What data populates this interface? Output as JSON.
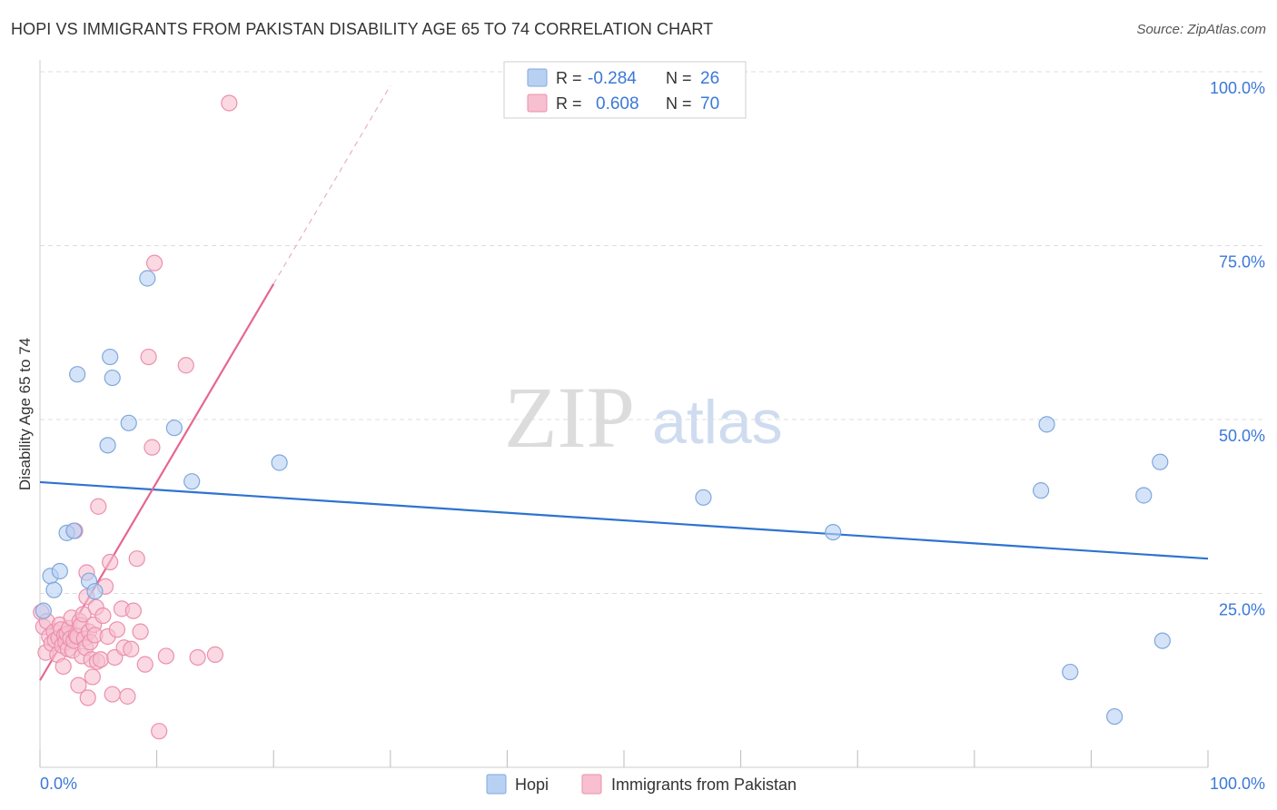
{
  "header": {
    "title": "HOPI VS IMMIGRANTS FROM PAKISTAN DISABILITY AGE 65 TO 74 CORRELATION CHART",
    "source": "Source: ZipAtlas.com"
  },
  "watermark": {
    "part1": "ZIP",
    "part2": "atlas"
  },
  "colors": {
    "hopi_fill": "#b8d1f3",
    "hopi_stroke": "#7fa8dc",
    "hopi_line": "#2e73d0",
    "pak_fill": "#f7bfd0",
    "pak_stroke": "#ec8fae",
    "pak_line": "#e5678f",
    "value_text": "#3b78d8"
  },
  "legend": {
    "rows": [
      {
        "r_label": "R =",
        "r_value": "-0.284",
        "n_label": "N =",
        "n_value": "26"
      },
      {
        "r_label": "R =",
        "r_value": "0.608",
        "n_label": "N =",
        "n_value": "70"
      }
    ]
  },
  "chart_data": {
    "type": "scatter",
    "title": "HOPI VS IMMIGRANTS FROM PAKISTAN DISABILITY AGE 65 TO 74 CORRELATION CHART",
    "xlabel": "",
    "ylabel": "Disability Age 65 to 74",
    "xlim": [
      0,
      100
    ],
    "ylim": [
      0,
      100
    ],
    "x_tick_labels": [
      "0.0%",
      "100.0%"
    ],
    "y_tick_labels": [
      "100.0%",
      "75.0%",
      "50.0%",
      "25.0%"
    ],
    "y_tick_values": [
      100,
      75,
      50,
      25
    ],
    "x_minor_ticks": [
      0,
      10,
      20,
      30,
      40,
      50,
      60,
      70,
      80,
      90,
      100
    ],
    "legend_labels": [
      "Hopi",
      "Immigrants from Pakistan"
    ],
    "series": [
      {
        "name": "Hopi",
        "r": -0.284,
        "n": 26,
        "trend": {
          "x0": 0,
          "y0": 41.0,
          "x1": 100,
          "y1": 30.0,
          "dashed_to": null
        },
        "points": [
          [
            0.3,
            22.5
          ],
          [
            0.9,
            27.5
          ],
          [
            1.2,
            25.5
          ],
          [
            1.7,
            28.2
          ],
          [
            2.3,
            33.7
          ],
          [
            2.9,
            34.0
          ],
          [
            3.2,
            56.5
          ],
          [
            4.2,
            26.8
          ],
          [
            4.7,
            25.3
          ],
          [
            5.8,
            46.3
          ],
          [
            6.0,
            59.0
          ],
          [
            6.2,
            56.0
          ],
          [
            7.6,
            49.5
          ],
          [
            9.2,
            70.3
          ],
          [
            11.5,
            48.8
          ],
          [
            13.0,
            41.1
          ],
          [
            20.5,
            43.8
          ],
          [
            56.8,
            38.8
          ],
          [
            67.9,
            33.8
          ],
          [
            85.7,
            39.8
          ],
          [
            86.2,
            49.3
          ],
          [
            88.2,
            13.7
          ],
          [
            92.0,
            7.3
          ],
          [
            94.5,
            39.1
          ],
          [
            95.9,
            43.9
          ],
          [
            96.1,
            18.2
          ]
        ]
      },
      {
        "name": "Immigrants from Pakistan",
        "r": 0.608,
        "n": 70,
        "trend": {
          "x0": 0,
          "y0": 12.5,
          "x1": 20,
          "y1": 69.5,
          "dashed_to": {
            "x": 30,
            "y": 98
          }
        },
        "points": [
          [
            0.1,
            22.3
          ],
          [
            0.3,
            20.2
          ],
          [
            0.5,
            16.5
          ],
          [
            0.6,
            21.0
          ],
          [
            0.8,
            18.8
          ],
          [
            1.0,
            17.8
          ],
          [
            1.2,
            19.5
          ],
          [
            1.3,
            18.3
          ],
          [
            1.5,
            16.2
          ],
          [
            1.6,
            18.6
          ],
          [
            1.7,
            20.5
          ],
          [
            1.8,
            19.8
          ],
          [
            1.9,
            17.5
          ],
          [
            2.0,
            14.5
          ],
          [
            2.1,
            19.0
          ],
          [
            2.2,
            18.0
          ],
          [
            2.3,
            19.2
          ],
          [
            2.4,
            17.0
          ],
          [
            2.5,
            20.0
          ],
          [
            2.6,
            18.5
          ],
          [
            2.7,
            21.5
          ],
          [
            2.8,
            16.8
          ],
          [
            2.9,
            18.2
          ],
          [
            3.0,
            34.0
          ],
          [
            3.1,
            19.0
          ],
          [
            3.2,
            18.8
          ],
          [
            3.3,
            11.8
          ],
          [
            3.4,
            21.0
          ],
          [
            3.5,
            20.4
          ],
          [
            3.6,
            16.0
          ],
          [
            3.7,
            22.0
          ],
          [
            3.8,
            18.5
          ],
          [
            3.9,
            17.2
          ],
          [
            4.0,
            24.5
          ],
          [
            4.1,
            10.0
          ],
          [
            4.2,
            19.5
          ],
          [
            4.3,
            18.0
          ],
          [
            4.4,
            15.5
          ],
          [
            4.5,
            13.0
          ],
          [
            4.6,
            20.5
          ],
          [
            4.7,
            19.0
          ],
          [
            4.8,
            23.0
          ],
          [
            4.9,
            15.2
          ],
          [
            5.0,
            37.5
          ],
          [
            5.2,
            15.5
          ],
          [
            5.4,
            21.8
          ],
          [
            5.6,
            26.0
          ],
          [
            5.8,
            18.8
          ],
          [
            6.0,
            29.5
          ],
          [
            6.2,
            10.5
          ],
          [
            6.4,
            15.8
          ],
          [
            6.6,
            19.8
          ],
          [
            7.0,
            22.8
          ],
          [
            7.2,
            17.2
          ],
          [
            7.5,
            10.2
          ],
          [
            7.8,
            17.0
          ],
          [
            8.0,
            22.5
          ],
          [
            8.3,
            30.0
          ],
          [
            8.6,
            19.5
          ],
          [
            9.0,
            14.8
          ],
          [
            9.3,
            59.0
          ],
          [
            9.6,
            46.0
          ],
          [
            9.8,
            72.5
          ],
          [
            10.2,
            5.2
          ],
          [
            10.8,
            16.0
          ],
          [
            12.5,
            57.8
          ],
          [
            13.5,
            15.8
          ],
          [
            15.0,
            16.2
          ],
          [
            16.2,
            95.5
          ],
          [
            4.0,
            28.0
          ]
        ]
      }
    ]
  }
}
